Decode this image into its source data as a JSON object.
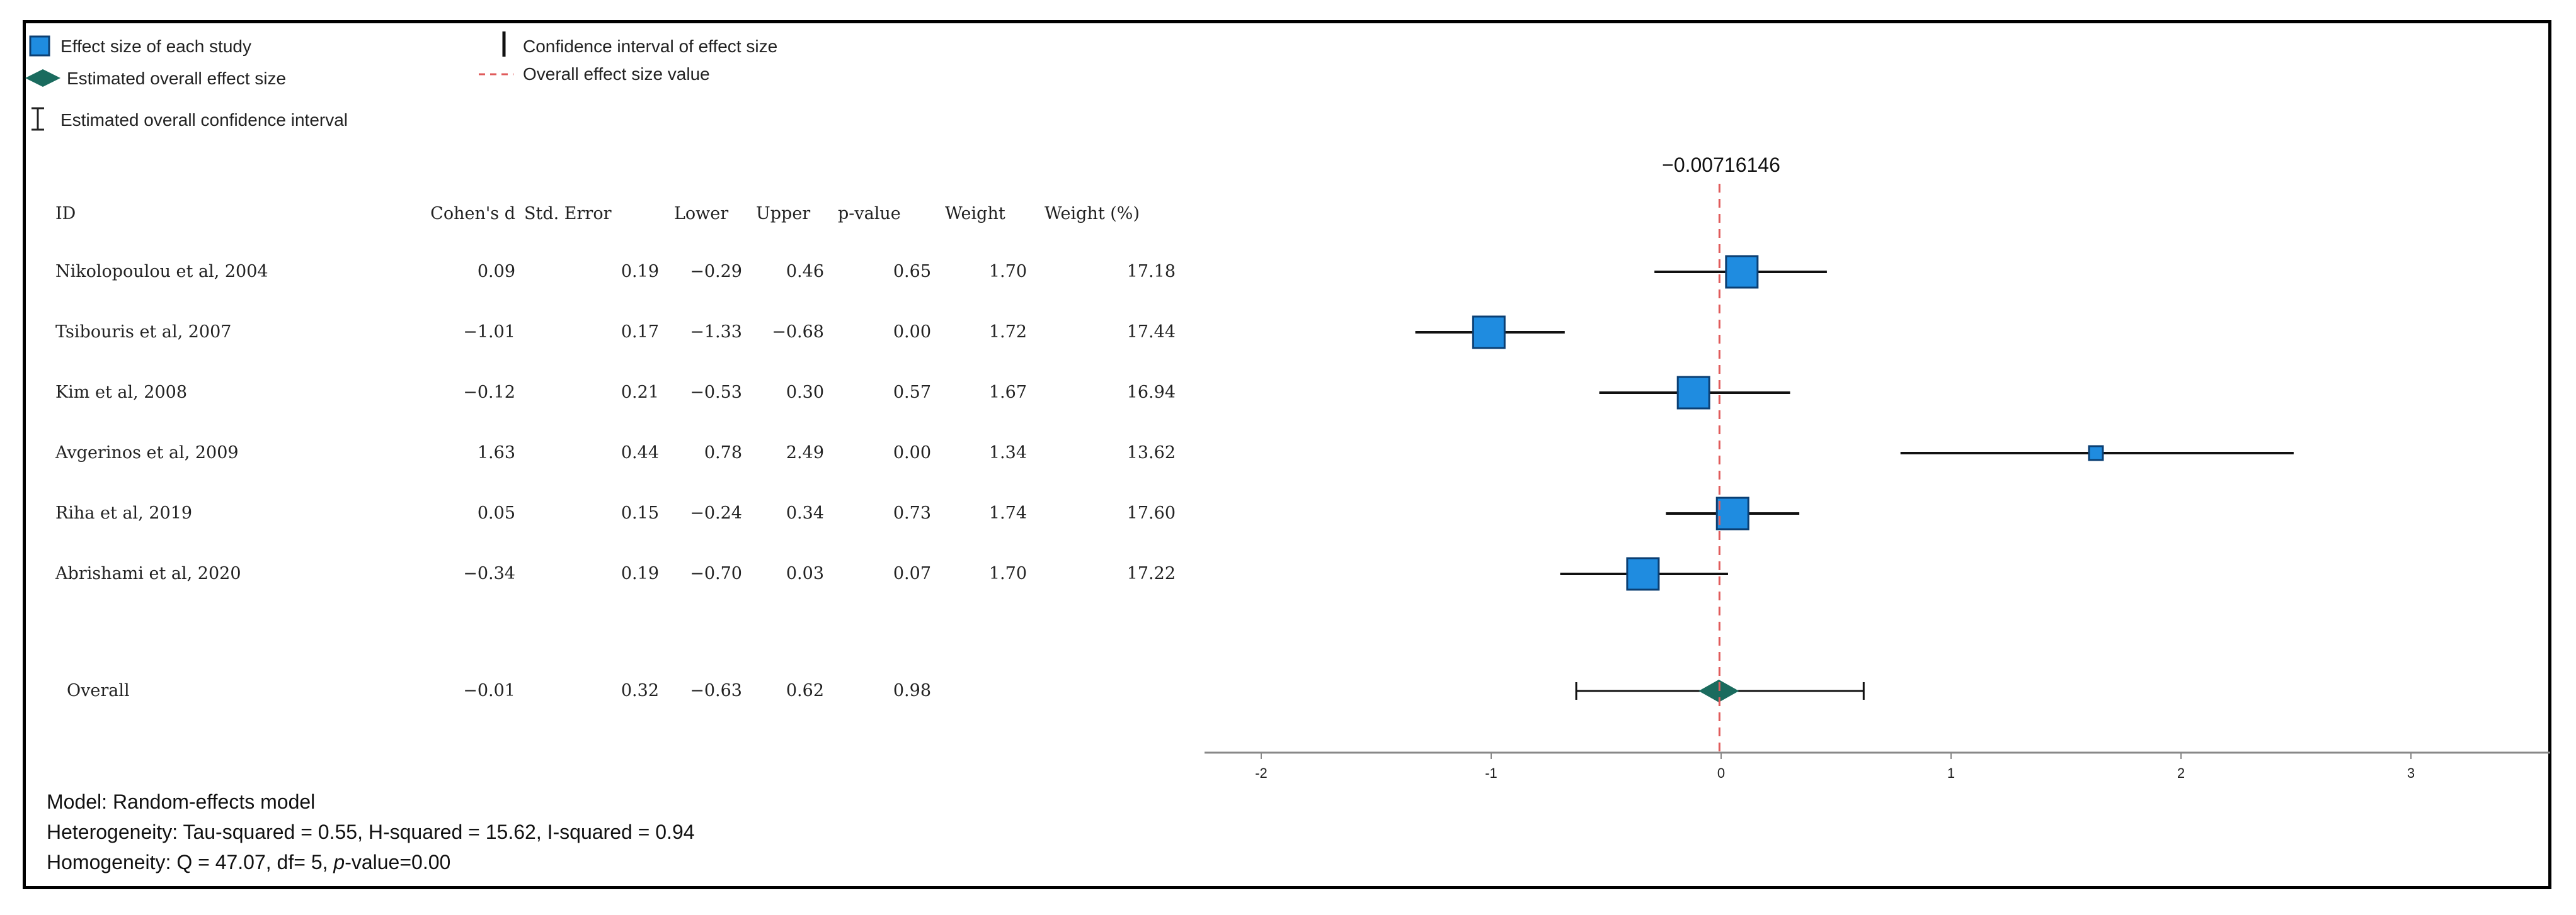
{
  "legend": {
    "study_effect": "Effect size of each study",
    "overall_effect": "Estimated overall effect size",
    "overall_ci": "Estimated overall confidence interval",
    "study_ci": "Confidence interval of effect size",
    "overall_line": "Overall effect size value"
  },
  "colors": {
    "square": "#1f8ce0",
    "square_border": "#0b3f73",
    "diamond": "#1a6b5e",
    "ref_line": "#e05b5b"
  },
  "footer": {
    "model": "Model: Random-effects model",
    "heterogeneity": "Heterogeneity: Tau-squared = 0.55, H-squared = 15.62, I-squared = 0.94",
    "homogeneity_prefix": "Homogeneity: Q = 47.07, df= 5, ",
    "homogeneity_p": "p",
    "homogeneity_suffix": "-value=0.00"
  },
  "chart_data": {
    "type": "forest",
    "overall_value_label": "−0.00716146",
    "overall_value": -0.00716146,
    "columns": [
      "ID",
      "Cohen's d",
      "Std. Error",
      "Lower",
      "Upper",
      "p-value",
      "Weight",
      "Weight (%)"
    ],
    "studies": [
      {
        "id": "Nikolopoulou et al, 2004",
        "d": "0.09",
        "se": "0.19",
        "lower": "−0.29",
        "upper": "0.46",
        "p": "0.65",
        "weight": "1.70",
        "weight_pct": "17.18",
        "d_val": 0.09,
        "lower_val": -0.29,
        "upper_val": 0.46,
        "w_val": 17.18
      },
      {
        "id": "Tsibouris et al, 2007",
        "d": "−1.01",
        "se": "0.17",
        "lower": "−1.33",
        "upper": "−0.68",
        "p": "0.00",
        "weight": "1.72",
        "weight_pct": "17.44",
        "d_val": -1.01,
        "lower_val": -1.33,
        "upper_val": -0.68,
        "w_val": 17.44
      },
      {
        "id": "Kim et al, 2008",
        "d": "−0.12",
        "se": "0.21",
        "lower": "−0.53",
        "upper": "0.30",
        "p": "0.57",
        "weight": "1.67",
        "weight_pct": "16.94",
        "d_val": -0.12,
        "lower_val": -0.53,
        "upper_val": 0.3,
        "w_val": 16.94
      },
      {
        "id": "Avgerinos et al, 2009",
        "d": "1.63",
        "se": "0.44",
        "lower": "0.78",
        "upper": "2.49",
        "p": "0.00",
        "weight": "1.34",
        "weight_pct": "13.62",
        "d_val": 1.63,
        "lower_val": 0.78,
        "upper_val": 2.49,
        "w_val": 13.62
      },
      {
        "id": "Riha et al, 2019",
        "d": "0.05",
        "se": "0.15",
        "lower": "−0.24",
        "upper": "0.34",
        "p": "0.73",
        "weight": "1.74",
        "weight_pct": "17.60",
        "d_val": 0.05,
        "lower_val": -0.24,
        "upper_val": 0.34,
        "w_val": 17.6
      },
      {
        "id": "Abrishami et al, 2020",
        "d": "−0.34",
        "se": "0.19",
        "lower": "−0.70",
        "upper": "0.03",
        "p": "0.07",
        "weight": "1.70",
        "weight_pct": "17.22",
        "d_val": -0.34,
        "lower_val": -0.7,
        "upper_val": 0.03,
        "w_val": 17.22
      }
    ],
    "overall": {
      "id": "Overall",
      "d": "−0.01",
      "se": "0.32",
      "lower": "−0.63",
      "upper": "0.62",
      "p": "0.98",
      "d_val": -0.01,
      "lower_val": -0.63,
      "upper_val": 0.62
    },
    "x_ticks": [
      "-2",
      "-1",
      "0",
      "1",
      "2",
      "3"
    ],
    "x_tick_values": [
      -2,
      -1,
      0,
      1,
      2,
      3
    ],
    "xlim": [
      -2.2,
      3.6
    ]
  }
}
